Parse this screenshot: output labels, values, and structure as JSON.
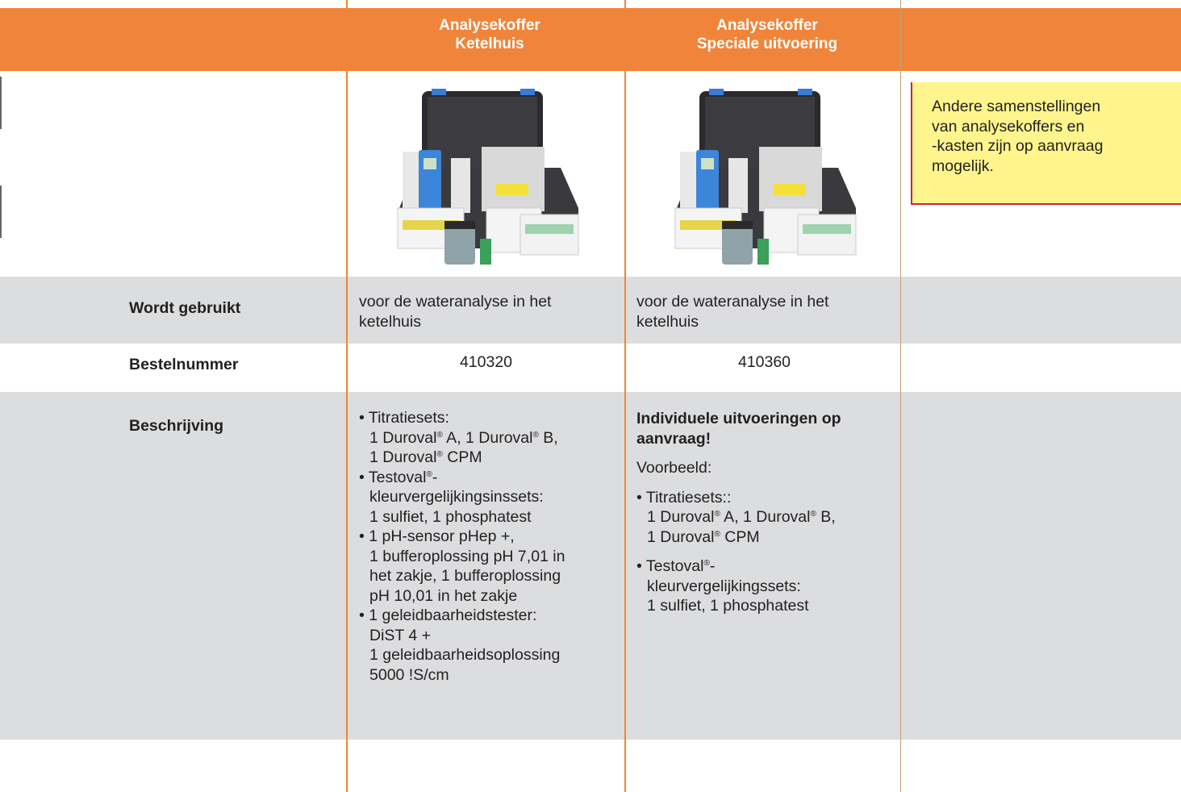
{
  "header": {
    "columns": [
      {
        "lines": [
          "Analysekoffer",
          "Ketelhuis"
        ]
      },
      {
        "lines": [
          "Analysekoffer",
          "Speciale uitvoering"
        ]
      }
    ]
  },
  "note": {
    "lines": [
      "Andere samenstellingen",
      "van analysekoffers en",
      "-kasten zijn op aanvraag",
      "mogelijk."
    ]
  },
  "rows": {
    "usage": {
      "label": "Wordt gebruikt",
      "cells": [
        [
          "voor de wateranalyse in het",
          "ketelhuis"
        ],
        [
          "voor de wateranalyse in het",
          "ketelhuis"
        ]
      ]
    },
    "order_number": {
      "label": "Bestelnummer",
      "cells": [
        "410320",
        "410360"
      ]
    },
    "description": {
      "label": "Beschrijving",
      "col1": {
        "items": [
          {
            "lines": [
              "• Titratiesets:",
              "1 Duroval® A, 1 Duroval® B,",
              "1 Duroval® CPM"
            ]
          },
          {
            "lines": [
              "• Testoval®-",
              "kleurvergelijkingsinssets:",
              "1 sulfiet, 1 phosphatest"
            ]
          },
          {
            "lines": [
              "• 1 pH-sensor pHep +,",
              "1 bufferoplossing pH 7,01 in",
              "het zakje, 1 bufferoplossing",
              "pH 10,01 in het zakje"
            ]
          },
          {
            "lines": [
              "• 1 geleidbaarheidstester:",
              "DiST 4 +",
              "1 geleidbaarheidsoplossing",
              "5000 !S/cm"
            ]
          }
        ]
      },
      "col2": {
        "heading": [
          "Individuele uitvoeringen op",
          "aanvraag!"
        ],
        "example": "Voorbeeld:",
        "items": [
          {
            "lines": [
              "• Titratiesets::",
              "1 Duroval® A, 1 Duroval® B,",
              "1 Duroval® CPM"
            ]
          },
          {
            "lines": [
              "• Testoval®-",
              "kleurvergelijkingssets:",
              "1 sulfiet, 1 phosphatest"
            ]
          }
        ]
      }
    }
  }
}
